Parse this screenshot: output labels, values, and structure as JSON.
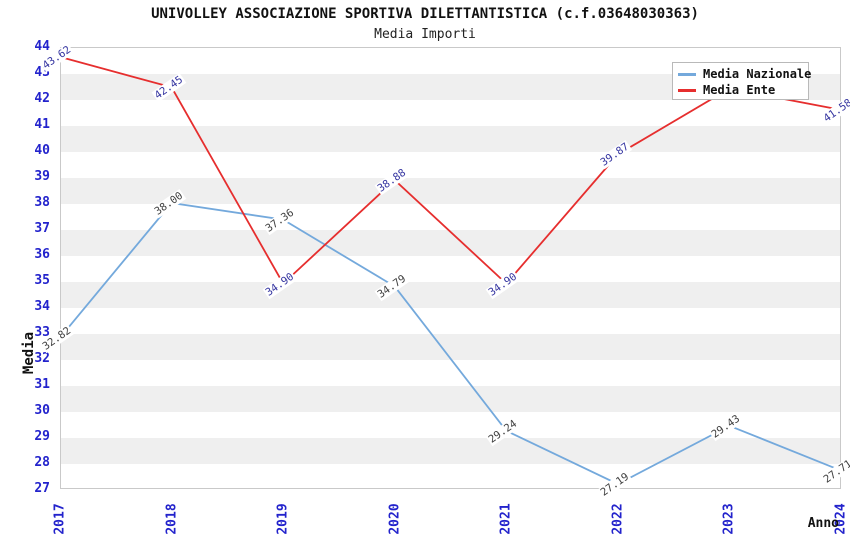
{
  "page": {
    "title": "UNIVOLLEY ASSOCIAZIONE SPORTIVA DILETTANTISTICA (c.f.03648030363)",
    "subtitle": "Media Importi"
  },
  "chart_data": {
    "type": "line",
    "x": [
      "2017",
      "2018",
      "2019",
      "2020",
      "2021",
      "2022",
      "2023",
      "2024"
    ],
    "xlabel": "Anno",
    "ylabel": "Media",
    "ylim": [
      27,
      44
    ],
    "ytick_step": 1,
    "grid": "horizontal alternating bands (white / light gray, 1 unit each)",
    "legend_position": "top-right",
    "series": [
      {
        "name": "Media Nazionale",
        "color": "#74a9dc",
        "label_color": "#3f3f3f",
        "values": [
          32.82,
          38.0,
          37.36,
          34.79,
          29.24,
          27.19,
          29.43,
          27.71
        ],
        "labels": [
          "32.82",
          "38.00",
          "37.36",
          "34.79",
          "29.24",
          "27.19",
          "29.43",
          "27.71"
        ]
      },
      {
        "name": "Media Ente",
        "color": "#e62e2e",
        "label_color": "#3434a0",
        "values": [
          43.62,
          42.45,
          34.9,
          38.88,
          34.9,
          39.87,
          42.4,
          41.58
        ],
        "labels": [
          "43.62",
          "42.45",
          "34.90",
          "38.88",
          "34.90",
          "39.87",
          "",
          "41.58"
        ]
      }
    ]
  },
  "colors": {
    "axis_tick": "#2323cc",
    "band_gray": "#efefef",
    "plot_border": "#c9c9c9",
    "title_text": "#111111"
  }
}
